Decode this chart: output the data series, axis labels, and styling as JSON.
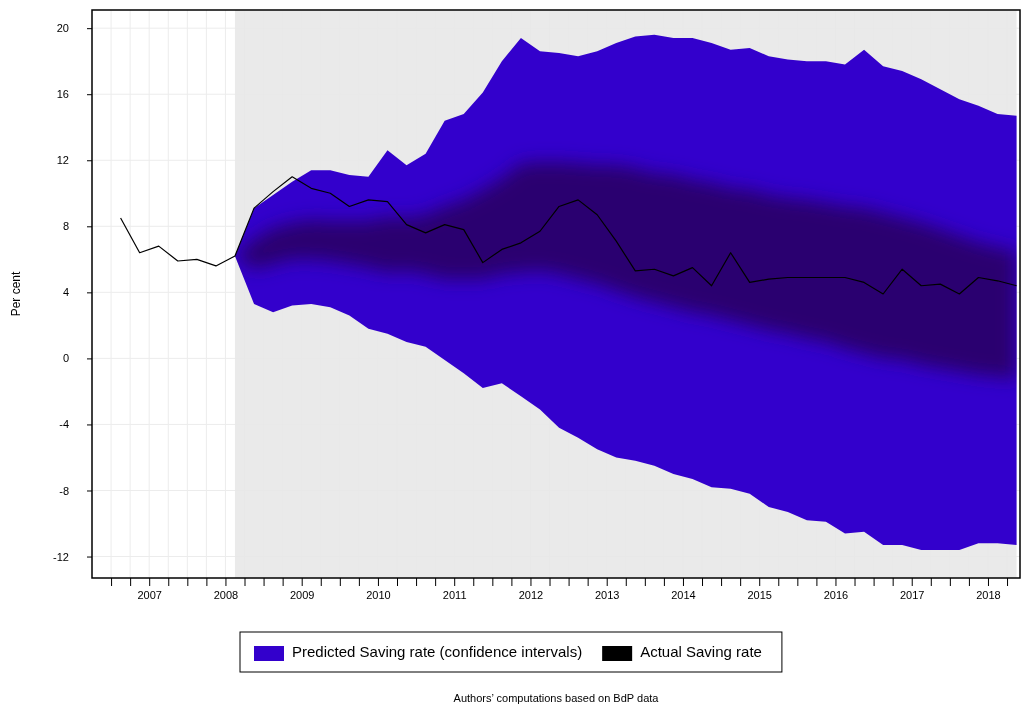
{
  "chart_data": {
    "type": "line",
    "ylabel": "Per cent",
    "annotations": [
      "Authors’ computations based on BdP data"
    ],
    "xlim": [
      2006.75,
      2018.92
    ],
    "ylim": [
      -13.3,
      21.1
    ],
    "yticks": [
      -12,
      -8,
      -4,
      0,
      4,
      8,
      12,
      16,
      20
    ],
    "xticks": [
      {
        "value": 2007,
        "label": null
      },
      {
        "value": 2007.25,
        "label": null
      },
      {
        "value": 2007.5,
        "label": "2007"
      },
      {
        "value": 2007.75,
        "label": null
      },
      {
        "value": 2008,
        "label": null
      },
      {
        "value": 2008.25,
        "label": null
      },
      {
        "value": 2008.5,
        "label": "2008"
      },
      {
        "value": 2008.75,
        "label": null
      },
      {
        "value": 2009,
        "label": null
      },
      {
        "value": 2009.25,
        "label": null
      },
      {
        "value": 2009.5,
        "label": "2009"
      },
      {
        "value": 2009.75,
        "label": null
      },
      {
        "value": 2010,
        "label": null
      },
      {
        "value": 2010.25,
        "label": null
      },
      {
        "value": 2010.5,
        "label": "2010"
      },
      {
        "value": 2010.75,
        "label": null
      },
      {
        "value": 2011,
        "label": null
      },
      {
        "value": 2011.25,
        "label": null
      },
      {
        "value": 2011.5,
        "label": "2011"
      },
      {
        "value": 2011.75,
        "label": null
      },
      {
        "value": 2012,
        "label": null
      },
      {
        "value": 2012.25,
        "label": null
      },
      {
        "value": 2012.5,
        "label": "2012"
      },
      {
        "value": 2012.75,
        "label": null
      },
      {
        "value": 2013,
        "label": null
      },
      {
        "value": 2013.25,
        "label": null
      },
      {
        "value": 2013.5,
        "label": "2013"
      },
      {
        "value": 2013.75,
        "label": null
      },
      {
        "value": 2014,
        "label": null
      },
      {
        "value": 2014.25,
        "label": null
      },
      {
        "value": 2014.5,
        "label": "2014"
      },
      {
        "value": 2014.75,
        "label": null
      },
      {
        "value": 2015,
        "label": null
      },
      {
        "value": 2015.25,
        "label": null
      },
      {
        "value": 2015.5,
        "label": "2015"
      },
      {
        "value": 2015.75,
        "label": null
      },
      {
        "value": 2016,
        "label": null
      },
      {
        "value": 2016.25,
        "label": null
      },
      {
        "value": 2016.5,
        "label": "2016"
      },
      {
        "value": 2016.75,
        "label": null
      },
      {
        "value": 2017,
        "label": null
      },
      {
        "value": 2017.25,
        "label": null
      },
      {
        "value": 2017.5,
        "label": "2017"
      },
      {
        "value": 2017.75,
        "label": null
      },
      {
        "value": 2018,
        "label": null
      },
      {
        "value": 2018.25,
        "label": null
      },
      {
        "value": 2018.5,
        "label": "2018"
      },
      {
        "value": 2018.75,
        "label": null
      }
    ],
    "grid": true,
    "legend": "bottom",
    "bands": [
      {
        "axis": "x",
        "from": 2008.625,
        "to": 2018.875,
        "color": "#e8e8e8"
      }
    ],
    "series": [
      {
        "name": "Predicted Saving rate (confidence intervals)",
        "color": "#3300cc",
        "x": [
          2008.625,
          2008.875,
          2009.125,
          2009.375,
          2009.625,
          2009.875,
          2010.125,
          2010.375,
          2010.625,
          2010.875,
          2011.125,
          2011.375,
          2011.625,
          2011.875,
          2012.125,
          2012.375,
          2012.625,
          2012.875,
          2013.125,
          2013.375,
          2013.625,
          2013.875,
          2014.125,
          2014.375,
          2014.625,
          2014.875,
          2015.125,
          2015.375,
          2015.625,
          2015.875,
          2016.125,
          2016.375,
          2016.625,
          2016.875,
          2017.125,
          2017.375,
          2017.625,
          2017.875,
          2018.125,
          2018.375,
          2018.625,
          2018.875
        ],
        "values": [
          null,
          null,
          null,
          null,
          null,
          null,
          null,
          null,
          null,
          null,
          null,
          null,
          null,
          null,
          null,
          null,
          null,
          null,
          null,
          null,
          null,
          null,
          null,
          null,
          null,
          null,
          null,
          null,
          null,
          null,
          null,
          null,
          null,
          null,
          null,
          null,
          null,
          null,
          null,
          null,
          null,
          null
        ],
        "upper": [
          6.2,
          9.1,
          9.9,
          10.7,
          11.4,
          11.4,
          11.1,
          11.0,
          12.6,
          11.7,
          12.4,
          14.4,
          14.8,
          16.1,
          18.0,
          19.4,
          18.6,
          18.5,
          18.3,
          18.6,
          19.1,
          19.5,
          19.6,
          19.4,
          19.4,
          19.1,
          18.7,
          18.8,
          18.3,
          18.1,
          18.0,
          18.0,
          17.8,
          18.7,
          17.7,
          17.4,
          16.9,
          16.3,
          15.7,
          15.3,
          14.8,
          14.7
        ],
        "lower": [
          6.2,
          3.3,
          2.8,
          3.2,
          3.3,
          3.1,
          2.6,
          1.8,
          1.5,
          1.0,
          0.7,
          -0.1,
          -0.9,
          -1.8,
          -1.5,
          -2.3,
          -3.1,
          -4.2,
          -4.8,
          -5.5,
          -6.0,
          -6.2,
          -6.5,
          -7.0,
          -7.3,
          -7.8,
          -7.9,
          -8.2,
          -9.0,
          -9.3,
          -9.8,
          -9.9,
          -10.6,
          -10.5,
          -11.3,
          -11.3,
          -11.6,
          -11.6,
          -11.6,
          -11.2,
          -11.2,
          -11.3
        ]
      },
      {
        "color": "#2a0070",
        "x": [
          2008.625,
          2008.875,
          2009.125,
          2009.375,
          2009.625,
          2009.875,
          2010.125,
          2010.375,
          2010.625,
          2010.875,
          2011.125,
          2011.375,
          2011.625,
          2011.875,
          2012.125,
          2012.375,
          2012.625,
          2012.875,
          2013.125,
          2013.375,
          2013.625,
          2013.875,
          2014.125,
          2014.375,
          2014.625,
          2014.875,
          2015.125,
          2015.375,
          2015.625,
          2015.875,
          2016.125,
          2016.375,
          2016.625,
          2016.875,
          2017.125,
          2017.375,
          2017.625,
          2017.875,
          2018.125,
          2018.375,
          2018.625,
          2018.875
        ],
        "values": [
          null,
          null,
          null,
          null,
          null,
          null,
          null,
          null,
          null,
          null,
          null,
          null,
          null,
          null,
          null,
          null,
          null,
          null,
          null,
          null,
          null,
          null,
          null,
          null,
          null,
          null,
          null,
          null,
          null,
          null,
          null,
          null,
          null,
          null,
          null,
          null,
          null,
          null,
          null,
          null,
          null,
          null
        ],
        "upper": [
          6.2,
          7.2,
          7.9,
          8.2,
          8.4,
          8.3,
          8.3,
          8.3,
          8.6,
          8.5,
          8.7,
          9.2,
          9.6,
          10.2,
          10.9,
          11.8,
          11.9,
          11.9,
          11.8,
          11.7,
          11.7,
          11.5,
          11.2,
          11.1,
          10.8,
          10.6,
          10.3,
          10.2,
          9.9,
          9.7,
          9.6,
          9.4,
          9.2,
          9.1,
          8.8,
          8.5,
          8.2,
          7.8,
          7.4,
          7.0,
          6.7,
          6.5
        ],
        "lower": [
          6.2,
          5.4,
          5.7,
          6.0,
          6.0,
          5.9,
          5.7,
          5.5,
          5.2,
          5.3,
          5.1,
          4.8,
          4.8,
          4.8,
          5.1,
          5.2,
          5.3,
          5.1,
          4.8,
          4.5,
          4.1,
          3.7,
          3.4,
          3.1,
          2.8,
          2.6,
          2.3,
          2.0,
          1.7,
          1.5,
          1.2,
          1.0,
          0.6,
          0.3,
          0.0,
          -0.1,
          -0.4,
          -0.6,
          -0.8,
          -1.0,
          -1.1,
          -1.3
        ]
      },
      {
        "name": "Actual Saving rate",
        "color": "#000000",
        "x": [
          2007.125,
          2007.375,
          2007.625,
          2007.875,
          2008.125,
          2008.375,
          2008.625,
          2008.875,
          2009.125,
          2009.375,
          2009.625,
          2009.875,
          2010.125,
          2010.375,
          2010.625,
          2010.875,
          2011.125,
          2011.375,
          2011.625,
          2011.875,
          2012.125,
          2012.375,
          2012.625,
          2012.875,
          2013.125,
          2013.375,
          2013.625,
          2013.875,
          2014.125,
          2014.375,
          2014.625,
          2014.875,
          2015.125,
          2015.375,
          2015.625,
          2015.875,
          2016.125,
          2016.375,
          2016.625,
          2016.875,
          2017.125,
          2017.375,
          2017.625,
          2017.875,
          2018.125,
          2018.375,
          2018.625,
          2018.875
        ],
        "values": [
          8.5,
          6.4,
          6.8,
          5.9,
          6.0,
          5.6,
          6.2,
          9.1,
          10.1,
          11.0,
          10.3,
          10.0,
          9.2,
          9.6,
          9.5,
          8.1,
          7.6,
          8.1,
          7.8,
          5.8,
          6.6,
          7.0,
          7.7,
          9.2,
          9.6,
          8.7,
          7.1,
          5.3,
          5.4,
          5.0,
          5.5,
          4.4,
          6.4,
          4.6,
          4.8,
          4.9,
          4.9,
          4.9,
          4.9,
          4.6,
          3.9,
          5.4,
          4.4,
          4.5,
          3.9,
          4.9,
          4.7,
          4.4
        ]
      }
    ]
  }
}
